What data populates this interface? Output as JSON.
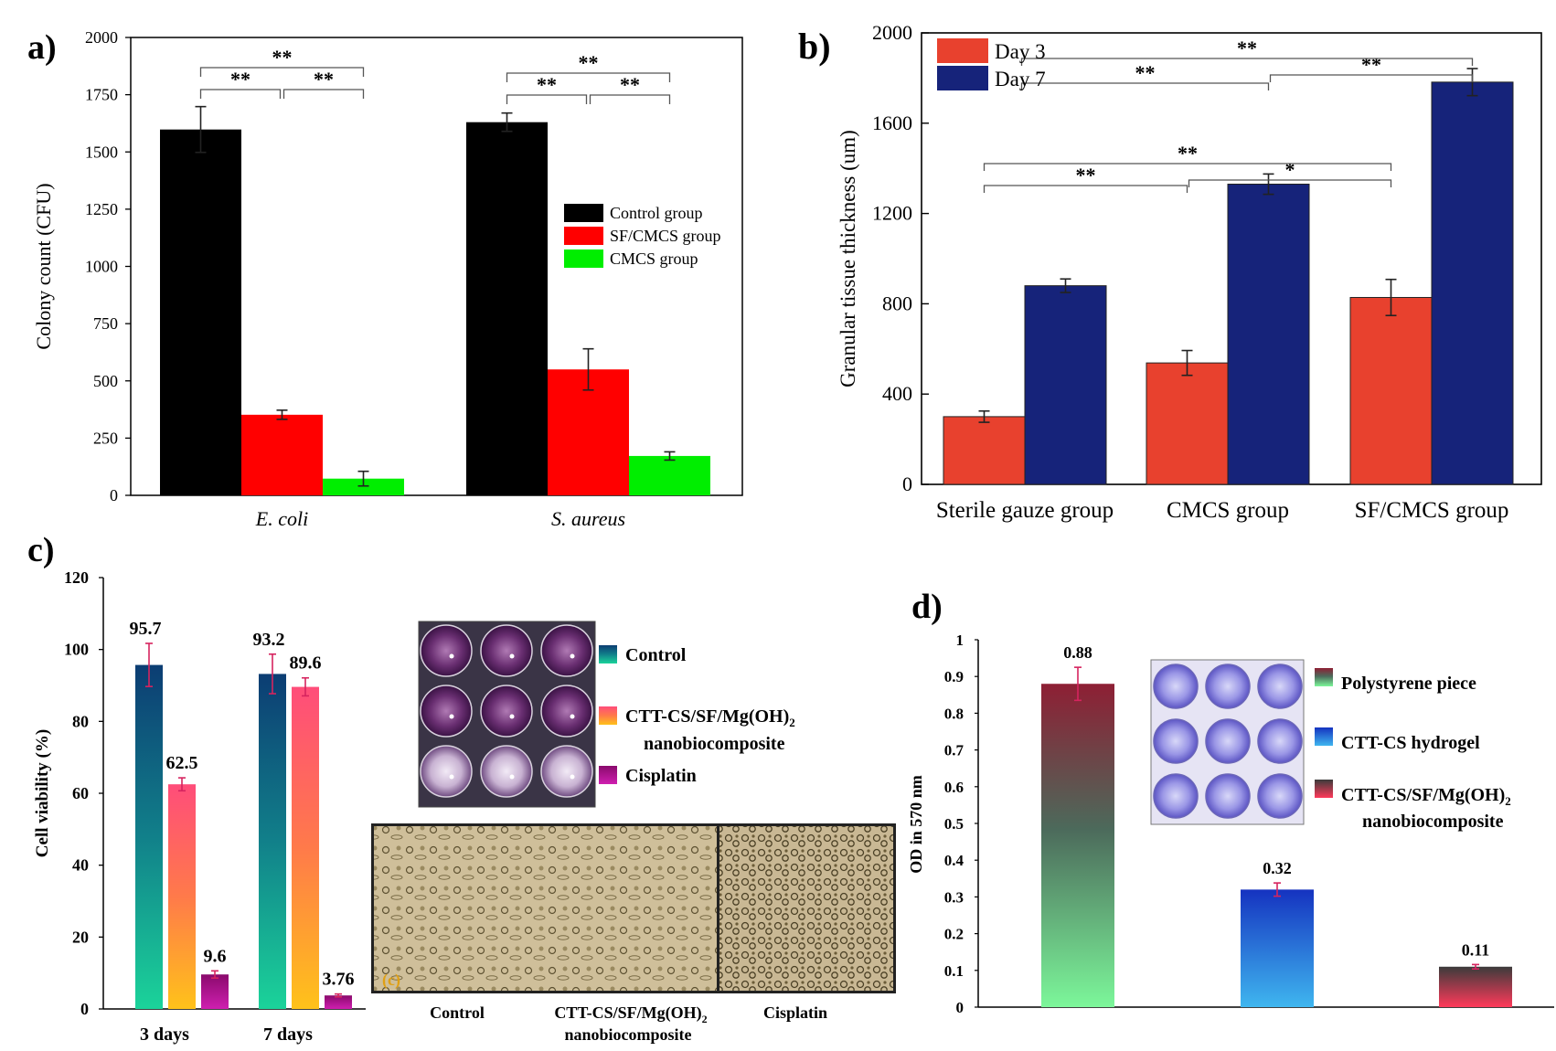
{
  "chart_data": [
    {
      "panel_label": "a)",
      "type": "bar",
      "ylabel": "Colony count (CFU)",
      "ylim": [
        0,
        2000
      ],
      "yticks": [
        "0",
        "250",
        "500",
        "750",
        "1000",
        "1250",
        "1500",
        "1750",
        "2000"
      ],
      "categories": [
        "E. coli",
        "S. aureus"
      ],
      "series": [
        {
          "name": "Control group",
          "color": "#000000",
          "values": [
            1598,
            1630
          ],
          "errors": [
            100,
            40
          ]
        },
        {
          "name": "SF/CMCS group",
          "color": "#ff0000",
          "values": [
            352,
            550
          ],
          "errors": [
            20,
            90
          ]
        },
        {
          "name": "CMCS group",
          "color": "#00ee00",
          "values": [
            73,
            172
          ],
          "errors": [
            32,
            18
          ]
        }
      ],
      "legend_position": "center-right",
      "significance": [
        {
          "group": "E. coli",
          "pair": "control-sfcmcs",
          "label": "**"
        },
        {
          "group": "E. coli",
          "pair": "sfcmcs-cmcs",
          "label": "**"
        },
        {
          "group": "E. coli",
          "pair": "control-cmcs",
          "label": "**"
        },
        {
          "group": "S. aureus",
          "pair": "control-sfcmcs",
          "label": "**"
        },
        {
          "group": "S. aureus",
          "pair": "sfcmcs-cmcs",
          "label": "**"
        },
        {
          "group": "S. aureus",
          "pair": "control-cmcs",
          "label": "**"
        }
      ]
    },
    {
      "panel_label": "b)",
      "type": "bar",
      "ylabel": "Granular tissue thickness (um)",
      "ylim": [
        0,
        2000
      ],
      "yticks": [
        "0",
        "400",
        "800",
        "1200",
        "1600",
        "2000"
      ],
      "categories": [
        "Sterile gauze group",
        "CMCS group",
        "SF/CMCS group"
      ],
      "series": [
        {
          "name": "Day 3",
          "color": "#e8412e",
          "values": [
            300,
            538,
            828
          ],
          "errors": [
            25,
            55,
            80
          ]
        },
        {
          "name": "Day 7",
          "color": "#16237a",
          "values": [
            880,
            1330,
            1782
          ],
          "errors": [
            30,
            45,
            60
          ]
        }
      ],
      "legend_position": "top-left",
      "significance": [
        {
          "series": "Day 3",
          "pair": "gauze-cmcs",
          "label": "**"
        },
        {
          "series": "Day 3",
          "pair": "cmcs-sfcmcs",
          "label": "*"
        },
        {
          "series": "Day 3",
          "pair": "gauze-sfcmcs",
          "label": "**"
        },
        {
          "series": "Day 7",
          "pair": "cmcs-sfcmcs",
          "label": "**"
        },
        {
          "series": "Day 7",
          "pair": "gauze-cmcs",
          "label": "**"
        },
        {
          "series": "Day 7",
          "pair": "gauze-sfcmcs",
          "label": "**"
        }
      ]
    },
    {
      "panel_label": "c)",
      "type": "bar",
      "ylabel": "Cell viability (%)",
      "ylim": [
        0,
        120
      ],
      "yticks": [
        "0",
        "20",
        "40",
        "60",
        "80",
        "100",
        "120"
      ],
      "categories": [
        "3 days",
        "7 days"
      ],
      "series": [
        {
          "name": "Control",
          "values": [
            95.7,
            93.2
          ],
          "labels": [
            "95.7",
            "93.2"
          ],
          "errors": [
            6,
            5.5
          ],
          "color_top": "#0c3d73",
          "color_bottom": "#1bd39a"
        },
        {
          "name": "CTT-CS/SF/Mg(OH)2 nanobiocomposite",
          "values": [
            62.5,
            89.6
          ],
          "labels": [
            "62.5",
            "89.6"
          ],
          "errors": [
            1.8,
            2.5
          ],
          "color_top": "#ff4d7a",
          "color_bottom": "#ffc21a"
        },
        {
          "name": "Cisplatin",
          "values": [
            9.6,
            3.76
          ],
          "labels": [
            "9.6",
            "3.76"
          ],
          "errors": [
            1.0,
            0.4
          ],
          "color_top": "#8a0a6c",
          "color_bottom": "#cf1fb0"
        }
      ],
      "legend": [
        "Control",
        "CTT-CS/SF/Mg(OH)",
        "2",
        "nanobiocomposite",
        "Cisplatin"
      ],
      "micrograph_labels": [
        "Control",
        "CTT-CS/SF/Mg(OH)",
        "2",
        "nanobiocomposite",
        "Cisplatin"
      ],
      "inset_tag": "(c)"
    },
    {
      "panel_label": "d)",
      "type": "bar",
      "ylabel": "OD in 570 nm",
      "ylim": [
        0,
        1
      ],
      "yticks": [
        "0",
        "0.1",
        "0.2",
        "0.3",
        "0.4",
        "0.5",
        "0.6",
        "0.7",
        "0.8",
        "0.9",
        "1"
      ],
      "categories": [
        "Polystyrene piece",
        "CTT-CS hydrogel",
        "CTT-CS/SF/Mg(OH)2 nanobiocomposite"
      ],
      "values": [
        0.88,
        0.32,
        0.11
      ],
      "labels": [
        "0.88",
        "0.32",
        "0.11"
      ],
      "errors": [
        0.045,
        0.018,
        0.006
      ],
      "bar_colors": [
        {
          "top": "#8e1f34",
          "bottom": "#7cf79a"
        },
        {
          "top": "#1533c0",
          "bottom": "#3fb6ef"
        },
        {
          "top": "#3b3b3b",
          "bottom": "#ff3a5a"
        }
      ],
      "legend": [
        "Polystyrene piece",
        "CTT-CS hydrogel",
        "CTT-CS/SF/Mg(OH)",
        "2",
        "nanobiocomposite"
      ]
    }
  ]
}
